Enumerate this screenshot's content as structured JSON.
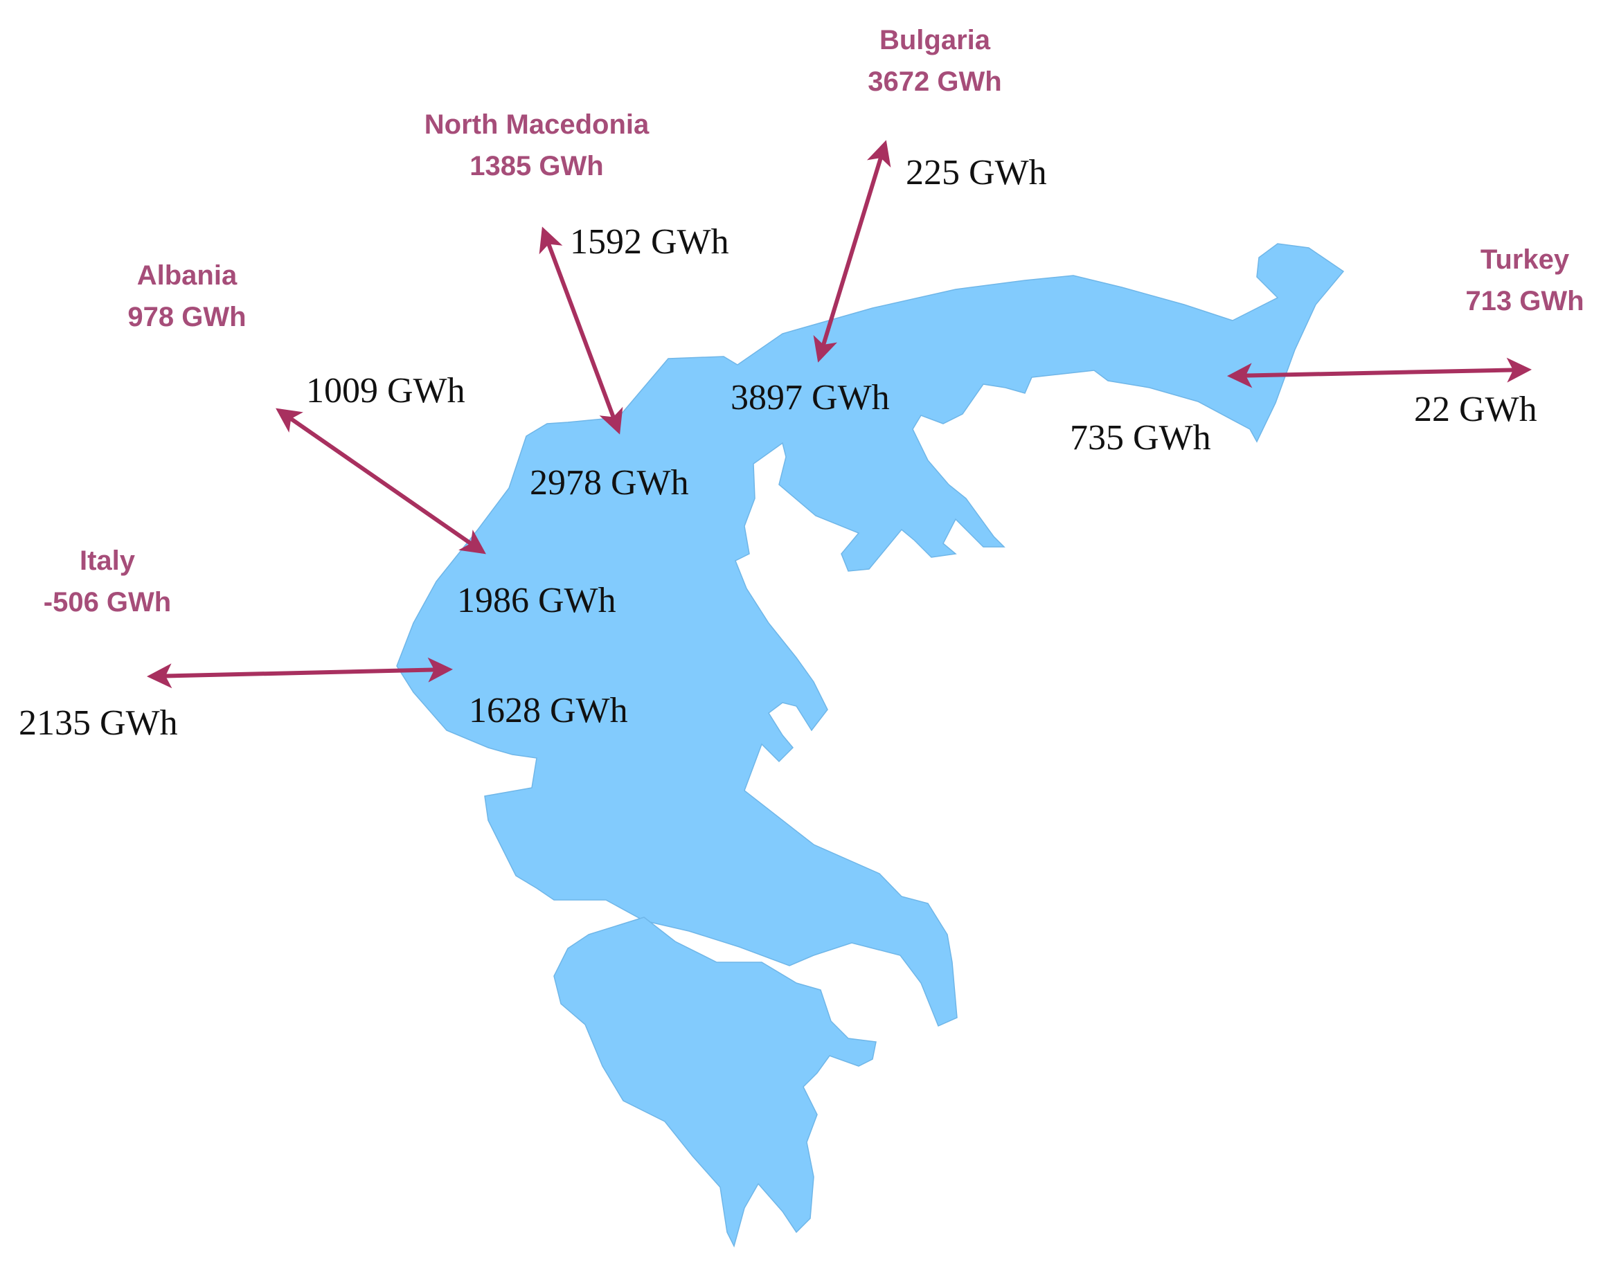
{
  "colors": {
    "land": "#82cbfd",
    "arrow": "#a8305f",
    "country_text": "#a64d79",
    "flow_text": "#111111"
  },
  "countries": [
    {
      "id": "bulgaria",
      "name": "Bulgaria",
      "value": "3672 GWh"
    },
    {
      "id": "north-macedonia",
      "name": "North Macedonia",
      "value": "1385 GWh"
    },
    {
      "id": "albania",
      "name": "Albania",
      "value": "978 GWh"
    },
    {
      "id": "turkey",
      "name": "Turkey",
      "value": "713 GWh"
    },
    {
      "id": "italy",
      "name": "Italy",
      "value": "-506 GWh"
    }
  ],
  "flows": [
    {
      "id": "bulgaria",
      "value": "225 GWh"
    },
    {
      "id": "north-macedonia",
      "value": "1592 GWh"
    },
    {
      "id": "albania",
      "value": "1009 GWh"
    },
    {
      "id": "turkey",
      "value": "22 GWh"
    },
    {
      "id": "italy",
      "value": "2135 GWh"
    }
  ],
  "zones": [
    {
      "id": "east-macedonia-thrace",
      "value": "3897 GWh"
    },
    {
      "id": "thrace-east",
      "value": "735 GWh"
    },
    {
      "id": "macedonia",
      "value": "2978 GWh"
    },
    {
      "id": "epirus",
      "value": "1986 GWh"
    },
    {
      "id": "west-greece",
      "value": "1628 GWh"
    }
  ]
}
